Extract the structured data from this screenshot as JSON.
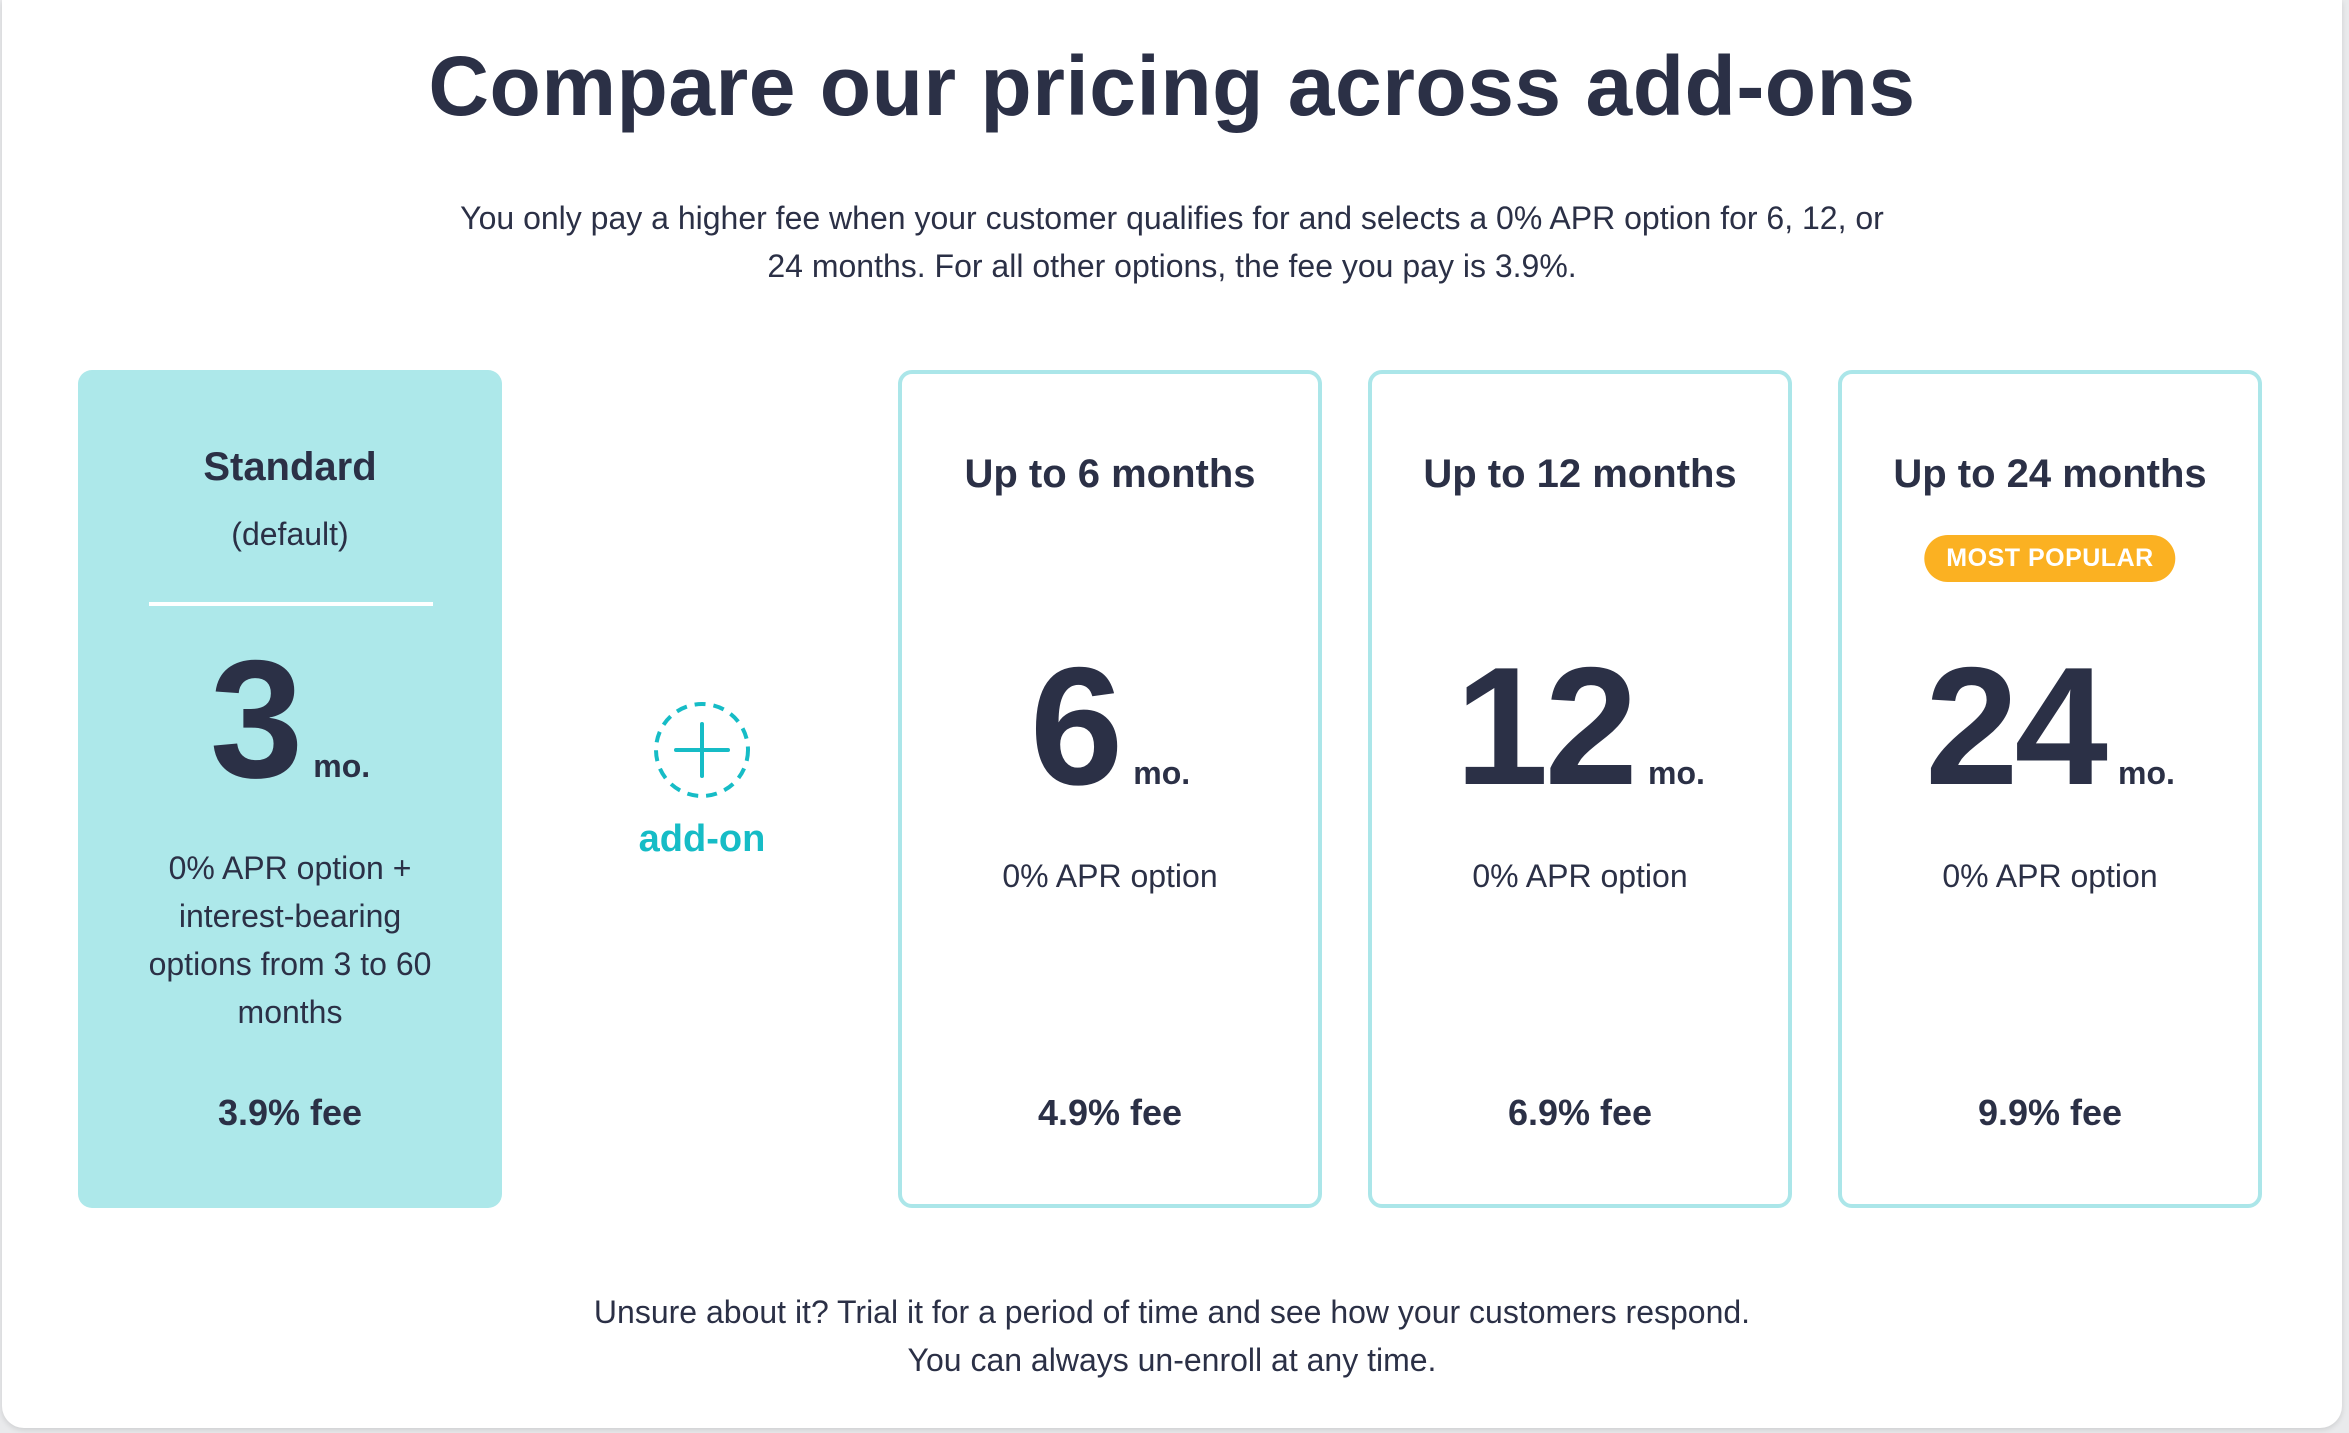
{
  "header": {
    "title": "Compare our pricing across add-ons",
    "subtitle_line1": "You only pay a higher fee when your customer qualifies for and selects a 0% APR option for 6, 12, or",
    "subtitle_line2": "24 months. For all other options, the fee you pay is 3.9%."
  },
  "standard": {
    "title": "Standard",
    "subtitle": "(default)",
    "number": "3",
    "unit": "mo.",
    "desc_line1": "0% APR option +",
    "desc_line2": "interest-bearing",
    "desc_line3": "options from 3 to 60",
    "desc_line4": "months",
    "fee": "3.9% fee"
  },
  "connector": {
    "icon": "plus-circle-dashed-icon",
    "label": "add-on"
  },
  "plans": [
    {
      "title": "Up to 6 months",
      "badge": "",
      "number": "6",
      "unit": "mo.",
      "desc": "0% APR option",
      "fee": "4.9% fee"
    },
    {
      "title": "Up to 12 months",
      "badge": "",
      "number": "12",
      "unit": "mo.",
      "desc": "0% APR option",
      "fee": "6.9% fee"
    },
    {
      "title": "Up to 24 months",
      "badge": "MOST POPULAR",
      "number": "24",
      "unit": "mo.",
      "desc": "0% APR option",
      "fee": "9.9% fee"
    }
  ],
  "footer": {
    "line1": "Unsure about it? Trial it for a period of time and see how your customers respond.",
    "line2": "You can always un-enroll at any time."
  },
  "colors": {
    "text": "#2b3046",
    "standard_card_bg": "#ade8ea",
    "addon_card_border": "#abe6e9",
    "accent_teal": "#16bcc6",
    "badge_bg": "#fbb122"
  }
}
